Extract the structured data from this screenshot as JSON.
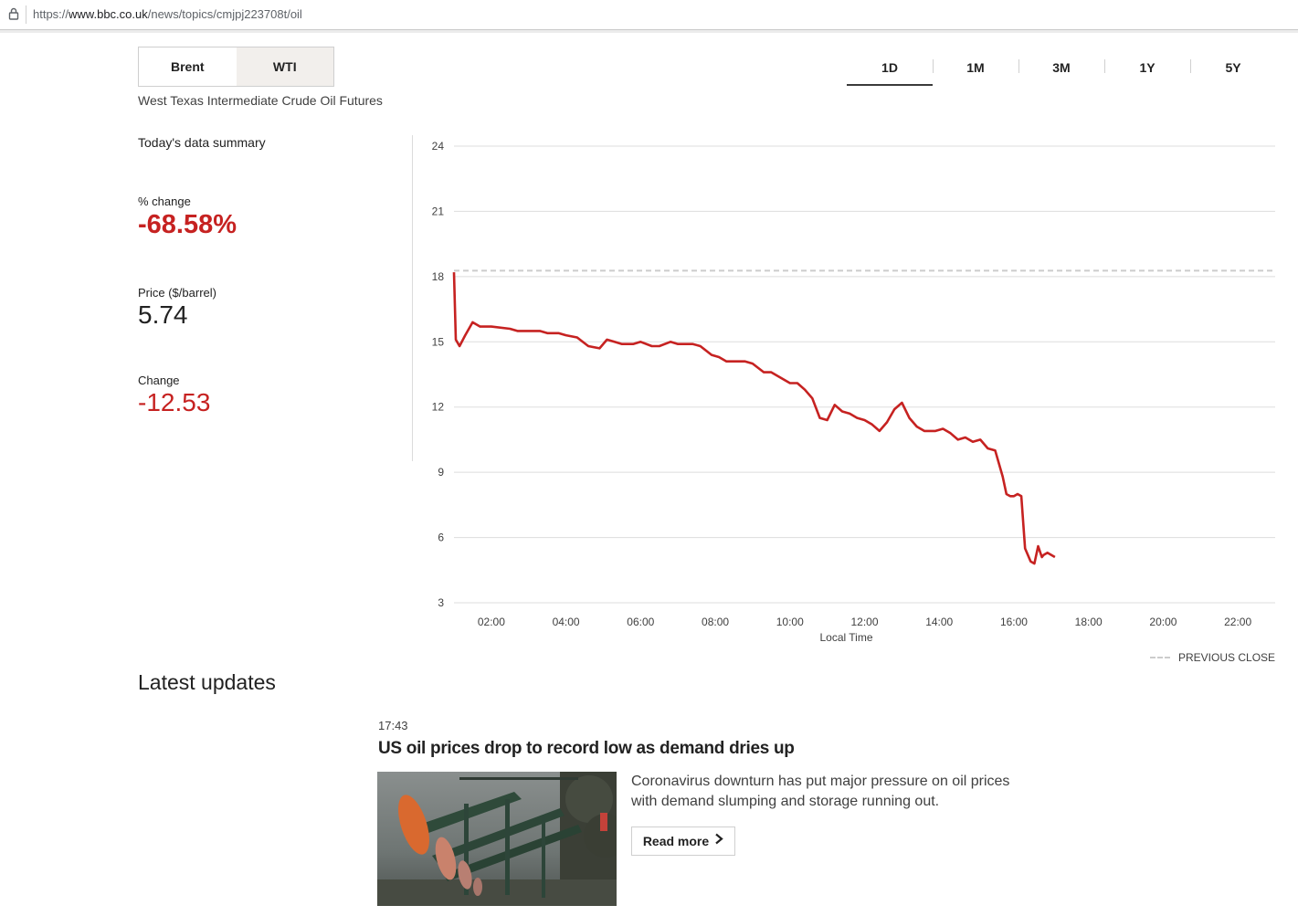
{
  "browser": {
    "url_prefix": "https://",
    "url_host": "www.bbc.co.uk",
    "url_path": "/news/topics/cmjpj223708t/oil"
  },
  "market_tabs": [
    {
      "label": "Brent",
      "active": false
    },
    {
      "label": "WTI",
      "active": true
    }
  ],
  "subtitle": "West Texas Intermediate Crude Oil Futures",
  "range_tabs": [
    {
      "label": "1D",
      "active": true
    },
    {
      "label": "1M",
      "active": false
    },
    {
      "label": "3M",
      "active": false
    },
    {
      "label": "1Y",
      "active": false
    },
    {
      "label": "5Y",
      "active": false
    }
  ],
  "summary": {
    "heading": "Today's data summary",
    "pct_change_label": "% change",
    "pct_change_value": "-68.58%",
    "price_label": "Price ($/barrel)",
    "price_value": "5.74",
    "change_label": "Change",
    "change_value": "-12.53"
  },
  "colors": {
    "negative": "#c62221",
    "line": "#c62221",
    "previous_close": "#cccccc",
    "active_tab_bg": "#f2efec"
  },
  "legend": {
    "previous_close_label": "PREVIOUS CLOSE"
  },
  "chart_data": {
    "type": "line",
    "xlabel": "Local Time",
    "ylabel": "",
    "y_ticks": [
      3,
      6,
      9,
      12,
      15,
      18,
      21,
      24
    ],
    "ylim": [
      3,
      24
    ],
    "x_ticks": [
      "02:00",
      "04:00",
      "06:00",
      "08:00",
      "10:00",
      "12:00",
      "14:00",
      "16:00",
      "18:00",
      "20:00",
      "22:00"
    ],
    "xlim_hours": [
      1.0,
      23.0
    ],
    "previous_close": 18.27,
    "grid": true,
    "series": [
      {
        "x": [
          1.0,
          1.05,
          1.15,
          1.3,
          1.5,
          1.7,
          2.0,
          2.5,
          2.7,
          3.0,
          3.3,
          3.5,
          3.8,
          4.0,
          4.3,
          4.6,
          4.9,
          5.1,
          5.3,
          5.5,
          5.8,
          6.0,
          6.3,
          6.5,
          6.8,
          7.0,
          7.2,
          7.4,
          7.6,
          7.9,
          8.1,
          8.3,
          8.5,
          8.8,
          9.0,
          9.3,
          9.5,
          9.8,
          10.0,
          10.2,
          10.4,
          10.6,
          10.8,
          11.0,
          11.2,
          11.4,
          11.6,
          11.8,
          12.0,
          12.2,
          12.4,
          12.6,
          12.8,
          13.0,
          13.2,
          13.4,
          13.6,
          13.8,
          13.9,
          14.1,
          14.3,
          14.5,
          14.7,
          14.9,
          15.1,
          15.3,
          15.5,
          15.7,
          15.8,
          15.9,
          16.0,
          16.1,
          16.2,
          16.3,
          16.45,
          16.55,
          16.65,
          16.75,
          16.8,
          16.9,
          17.0,
          17.1
        ],
        "y": [
          18.2,
          15.1,
          14.8,
          15.3,
          15.9,
          15.7,
          15.7,
          15.6,
          15.5,
          15.5,
          15.5,
          15.4,
          15.4,
          15.3,
          15.2,
          14.8,
          14.7,
          15.1,
          15.0,
          14.9,
          14.9,
          15.0,
          14.8,
          14.8,
          15.0,
          14.9,
          14.9,
          14.9,
          14.8,
          14.4,
          14.3,
          14.1,
          14.1,
          14.1,
          14.0,
          13.6,
          13.6,
          13.3,
          13.1,
          13.1,
          12.8,
          12.4,
          11.5,
          11.4,
          12.1,
          11.8,
          11.7,
          11.5,
          11.4,
          11.2,
          10.9,
          11.3,
          11.9,
          12.2,
          11.5,
          11.1,
          10.9,
          10.9,
          10.9,
          11.0,
          10.8,
          10.5,
          10.6,
          10.4,
          10.5,
          10.1,
          10.0,
          8.8,
          8.0,
          7.9,
          7.9,
          8.0,
          7.9,
          5.5,
          4.9,
          4.8,
          5.6,
          5.1,
          5.2,
          5.3,
          5.2,
          5.1
        ]
      }
    ]
  },
  "latest": {
    "heading": "Latest updates",
    "time": "17:43",
    "title": "US oil prices drop to record low as demand dries up",
    "summary": "Coronavirus downturn has put major pressure on oil prices with demand slumping and storage running out.",
    "read_more": "Read more"
  }
}
